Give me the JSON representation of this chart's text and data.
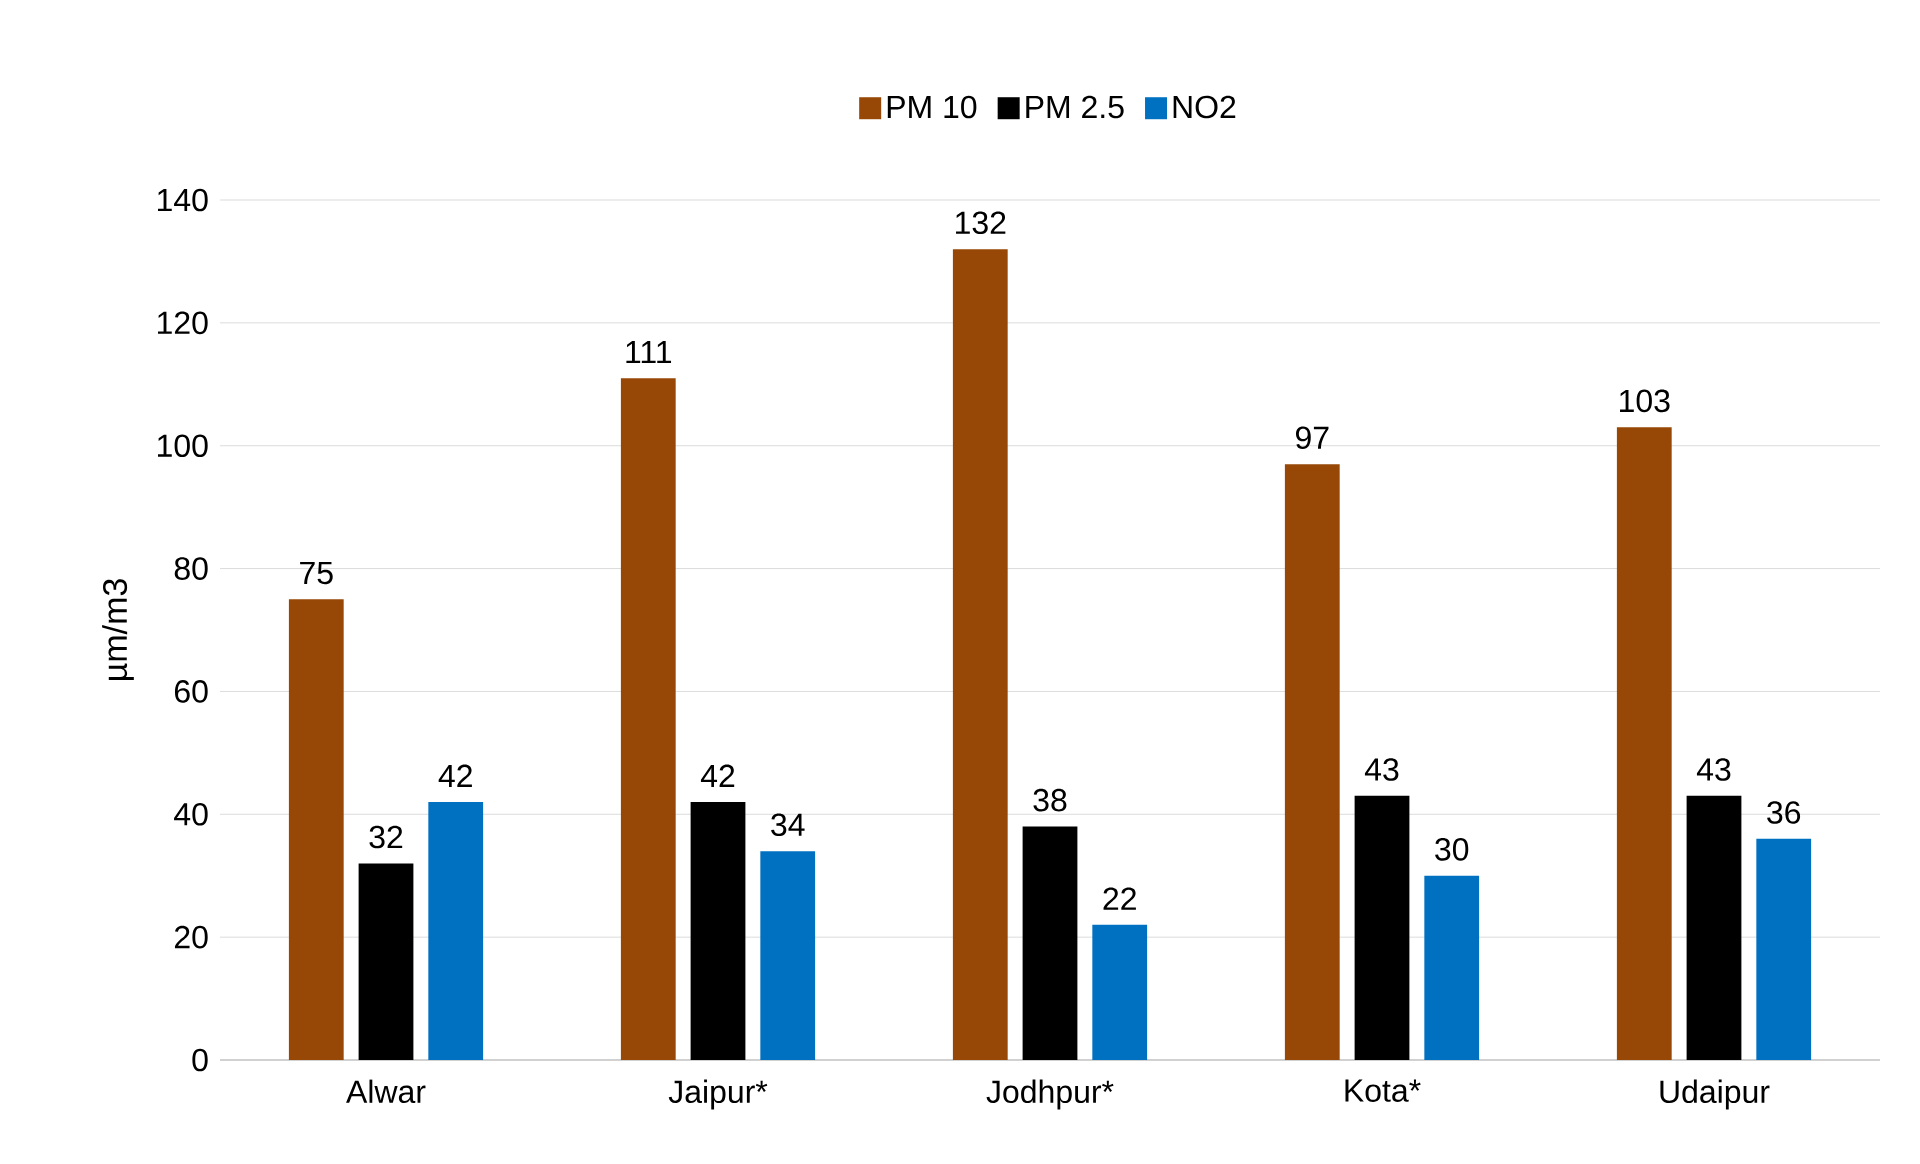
{
  "chart_data": {
    "type": "bar",
    "ylabel": "µm/m3",
    "categories": [
      "Alwar",
      "Jaipur*",
      "Jodhpur*",
      "Kota*",
      "Udaipur"
    ],
    "series": [
      {
        "name": "PM 10",
        "color": "#974706",
        "values": [
          75,
          111,
          132,
          97,
          103
        ]
      },
      {
        "name": "PM 2.5",
        "color": "#000000",
        "values": [
          32,
          42,
          38,
          43,
          43
        ]
      },
      {
        "name": "NO2",
        "color": "#0070c0",
        "values": [
          42,
          34,
          22,
          30,
          36
        ]
      }
    ],
    "ylim": [
      0,
      140
    ],
    "yticks": [
      0,
      20,
      40,
      60,
      80,
      100,
      120,
      140
    ],
    "grid": "y",
    "legend": "top",
    "data_labels": true
  }
}
